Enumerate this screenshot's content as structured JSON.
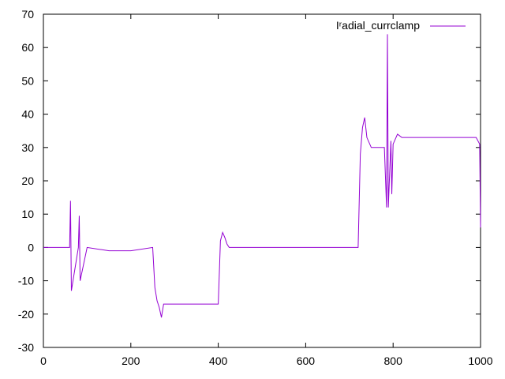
{
  "chart_data": {
    "type": "line",
    "title": "",
    "xlabel": "",
    "ylabel": "",
    "xlim": [
      0,
      1000
    ],
    "ylim": [
      -30,
      70
    ],
    "x_ticks": [
      0,
      200,
      400,
      600,
      800,
      1000
    ],
    "y_ticks": [
      -30,
      -20,
      -10,
      0,
      10,
      20,
      30,
      40,
      50,
      60,
      70
    ],
    "grid": false,
    "legend": {
      "position": "top-right"
    },
    "series": [
      {
        "name": "Iʳadial_currclamp",
        "color": "#9400d3",
        "x": [
          0,
          50,
          60,
          62,
          64,
          80,
          82,
          84,
          100,
          150,
          200,
          250,
          255,
          260,
          265,
          270,
          275,
          280,
          300,
          350,
          400,
          405,
          410,
          415,
          420,
          425,
          430,
          440,
          500,
          600,
          700,
          715,
          720,
          725,
          730,
          735,
          740,
          750,
          770,
          780,
          785,
          787,
          789,
          795,
          797,
          800,
          810,
          820,
          840,
          860,
          880,
          900,
          950,
          990,
          998,
          1000
        ],
        "y": [
          0,
          0,
          0,
          14,
          -13,
          0,
          9.5,
          -10,
          0,
          -1,
          -1,
          0,
          -12,
          -16,
          -18,
          -21,
          -17,
          -17,
          -17,
          -17,
          -17,
          2,
          4.5,
          3,
          1,
          0,
          0,
          0,
          0,
          0,
          0,
          0,
          0,
          28,
          36,
          39,
          33,
          30,
          30,
          30,
          12,
          64,
          12,
          32,
          16,
          31,
          34,
          33,
          33,
          33,
          33,
          33,
          33,
          33,
          31,
          6
        ]
      }
    ]
  }
}
